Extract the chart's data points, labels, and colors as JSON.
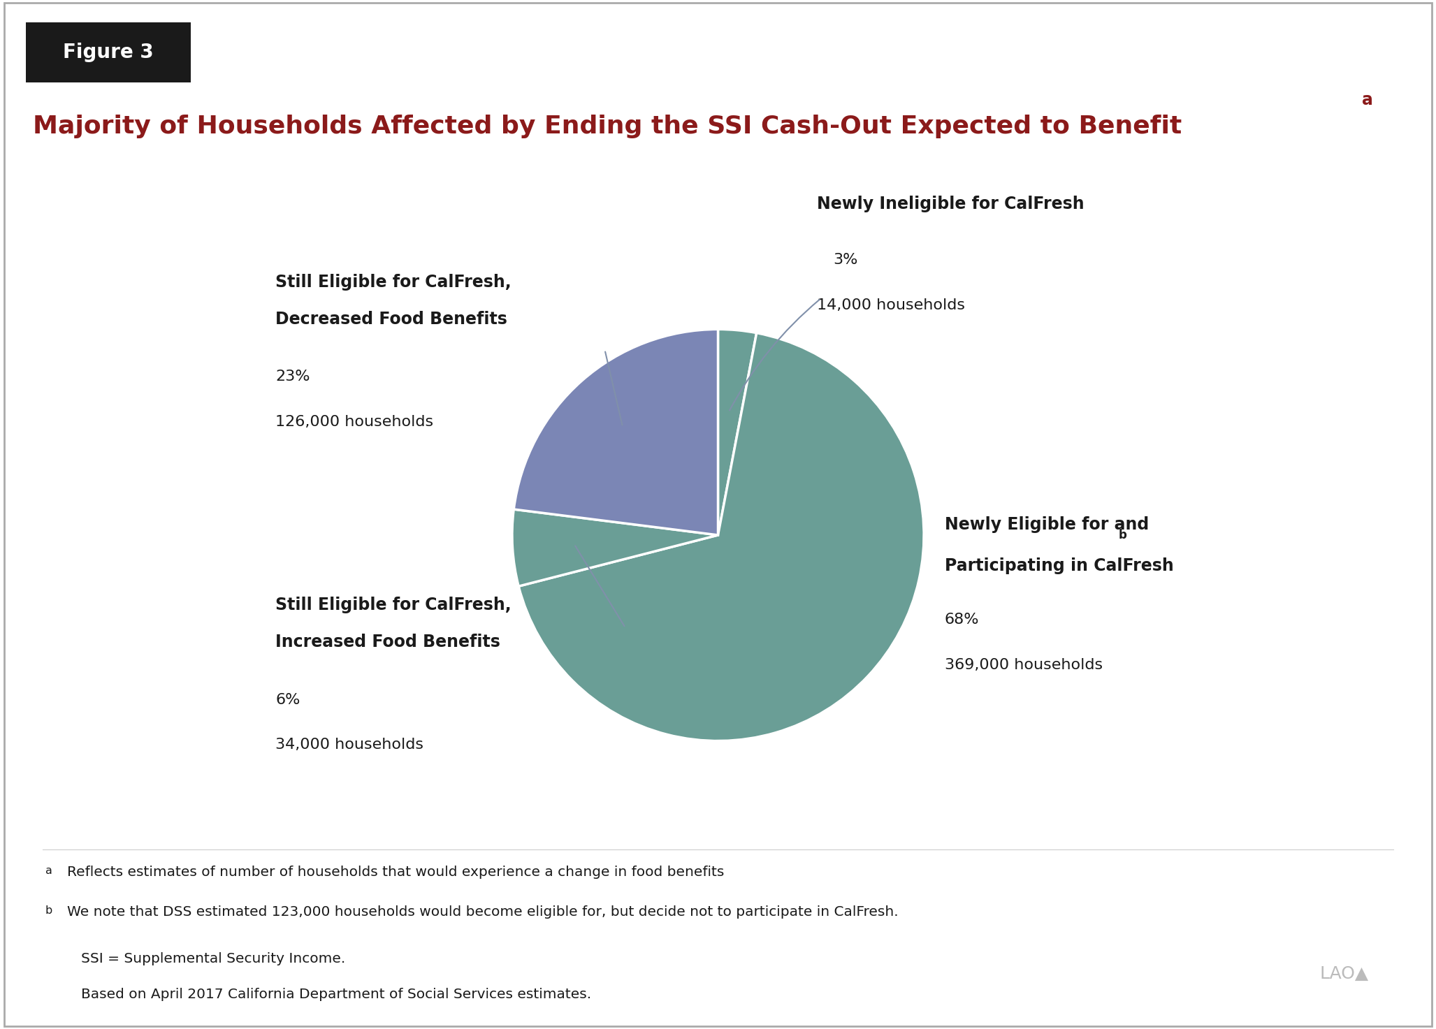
{
  "title_main": "Majority of Households Affected by Ending the SSI Cash-Out Expected to Benefit",
  "title_superscript": "a",
  "figure_label": "Figure 3",
  "slices": [
    {
      "label": "Newly Eligible for and\nParticipating in CalFresh",
      "label_superscript": "b",
      "pct": 68,
      "pct_text": "68%",
      "households": "369,000 households",
      "color": "#6a9e96"
    },
    {
      "label": "Newly Ineligible for CalFresh",
      "label_superscript": "",
      "pct": 3,
      "pct_text": "3%",
      "households": "14,000 households",
      "color": "#6a9e96"
    },
    {
      "label": "Still Eligible for CalFresh,\nDecreased Food Benefits",
      "label_superscript": "",
      "pct": 23,
      "pct_text": "23%",
      "households": "126,000 households",
      "color": "#7b86b5"
    },
    {
      "label": "Still Eligible for CalFresh,\nIncreased Food Benefits",
      "label_superscript": "",
      "pct": 6,
      "pct_text": "6%",
      "households": "34,000 households",
      "color": "#6a9e96"
    }
  ],
  "footnote_a": "Reflects estimates of number of households that would experience a change in food benefits",
  "footnote_b": "We note that DSS estimated 123,000 households would become eligible for, but decide not to participate in CalFresh.",
  "footnote_ssi": "SSI = Supplemental Security Income.",
  "footnote_based": "Based on April 2017 California Department of Social Services estimates.",
  "title_color": "#8b1a1a",
  "figure_bg": "#1a1a1a",
  "figure_label_color": "#ffffff",
  "chart_bg": "#ffffff",
  "border_color": "#aaaaaa",
  "text_color": "#1a1a1a",
  "lao_color": "#bbbbbb"
}
